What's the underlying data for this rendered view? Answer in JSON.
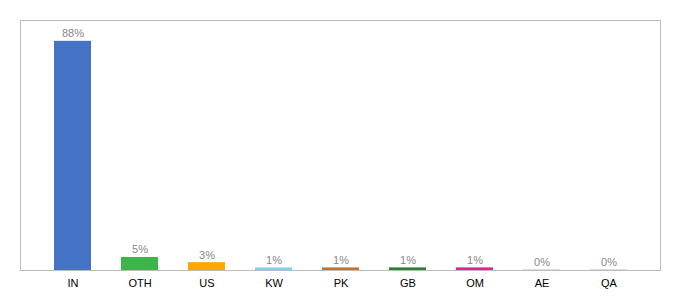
{
  "chart_data": {
    "type": "bar",
    "categories": [
      "IN",
      "OTH",
      "US",
      "KW",
      "PK",
      "GB",
      "OM",
      "AE",
      "QA"
    ],
    "values": [
      88,
      5,
      3,
      1,
      1,
      1,
      1,
      0.15,
      0.15
    ],
    "value_labels": [
      "88%",
      "5%",
      "3%",
      "1%",
      "1%",
      "1%",
      "1%",
      "0%",
      "0%"
    ],
    "colors": [
      "#4472C4",
      "#3CB54A",
      "#FFA500",
      "#87CEEB",
      "#C8722A",
      "#2E7D32",
      "#E91E90",
      "#AAAAAA",
      "#AAAAAA"
    ],
    "ylim": [
      0,
      96
    ],
    "data_labels": true,
    "tick_labels": "x"
  }
}
